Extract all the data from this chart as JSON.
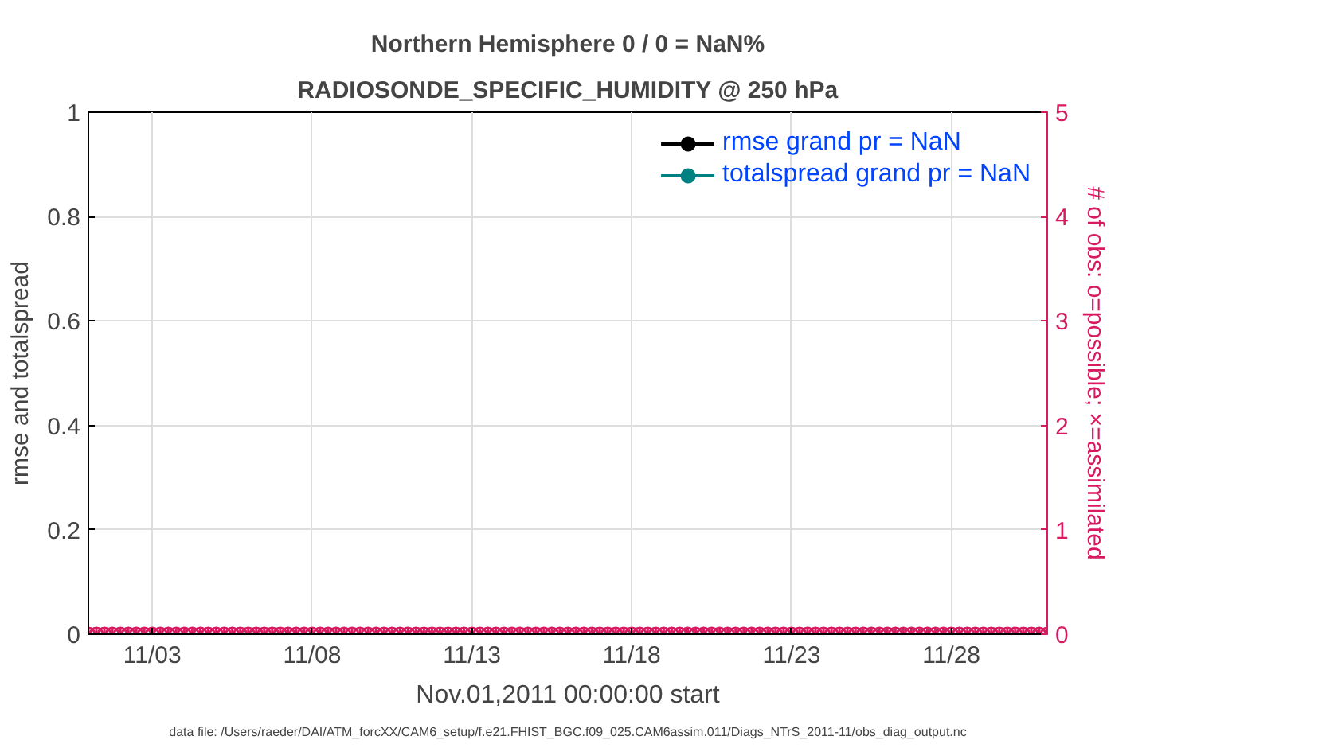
{
  "chart_data": {
    "type": "line",
    "title": "Northern Hemisphere 0 / 0 = NaN%",
    "subtitle": "RADIOSONDE_SPECIFIC_HUMIDITY @ 250 hPa",
    "xlabel": "Nov.01,2011 00:00:00 start",
    "ylabel": "rmse and totalspread",
    "y2label": "# of obs: o=possible; ×=assimilated",
    "annotations": [
      "data file: /Users/raeder/DAI/ATM_forcXX/CAM6_setup/f.e21.FHIST_BGC.f09_025.CAM6assim.011/Diags_NTrS_2011-11/obs_diag_output.nc"
    ],
    "x": [
      "2011-11-01T00:00",
      "2011-11-01T06:00",
      "2011-11-01T12:00",
      "2011-11-01T18:00",
      "2011-11-02T00:00",
      "2011-11-02T06:00",
      "2011-11-02T12:00",
      "2011-11-02T18:00",
      "2011-11-03T00:00",
      "2011-11-03T06:00",
      "2011-11-03T12:00",
      "2011-11-03T18:00",
      "2011-11-04T00:00",
      "2011-11-04T06:00",
      "2011-11-04T12:00",
      "2011-11-04T18:00",
      "2011-11-05T00:00",
      "2011-11-05T06:00",
      "2011-11-05T12:00",
      "2011-11-05T18:00",
      "2011-11-06T00:00",
      "2011-11-06T06:00",
      "2011-11-06T12:00",
      "2011-11-06T18:00",
      "2011-11-07T00:00",
      "2011-11-07T06:00",
      "2011-11-07T12:00",
      "2011-11-07T18:00",
      "2011-11-08T00:00",
      "2011-11-08T06:00",
      "2011-11-08T12:00",
      "2011-11-08T18:00",
      "2011-11-09T00:00",
      "2011-11-09T06:00",
      "2011-11-09T12:00",
      "2011-11-09T18:00",
      "2011-11-10T00:00",
      "2011-11-10T06:00",
      "2011-11-10T12:00",
      "2011-11-10T18:00",
      "2011-11-11T00:00",
      "2011-11-11T06:00",
      "2011-11-11T12:00",
      "2011-11-11T18:00",
      "2011-11-12T00:00",
      "2011-11-12T06:00",
      "2011-11-12T12:00",
      "2011-11-12T18:00",
      "2011-11-13T00:00",
      "2011-11-13T06:00",
      "2011-11-13T12:00",
      "2011-11-13T18:00",
      "2011-11-14T00:00",
      "2011-11-14T06:00",
      "2011-11-14T12:00",
      "2011-11-14T18:00",
      "2011-11-15T00:00",
      "2011-11-15T06:00",
      "2011-11-15T12:00",
      "2011-11-15T18:00",
      "2011-11-16T00:00",
      "2011-11-16T06:00",
      "2011-11-16T12:00",
      "2011-11-16T18:00",
      "2011-11-17T00:00",
      "2011-11-17T06:00",
      "2011-11-17T12:00",
      "2011-11-17T18:00",
      "2011-11-18T00:00",
      "2011-11-18T06:00",
      "2011-11-18T12:00",
      "2011-11-18T18:00",
      "2011-11-19T00:00",
      "2011-11-19T06:00",
      "2011-11-19T12:00",
      "2011-11-19T18:00",
      "2011-11-20T00:00",
      "2011-11-20T06:00",
      "2011-11-20T12:00",
      "2011-11-20T18:00",
      "2011-11-21T00:00",
      "2011-11-21T06:00",
      "2011-11-21T12:00",
      "2011-11-21T18:00",
      "2011-11-22T00:00",
      "2011-11-22T06:00",
      "2011-11-22T12:00",
      "2011-11-22T18:00",
      "2011-11-23T00:00",
      "2011-11-23T06:00",
      "2011-11-23T12:00",
      "2011-11-23T18:00",
      "2011-11-24T00:00",
      "2011-11-24T06:00",
      "2011-11-24T12:00",
      "2011-11-24T18:00",
      "2011-11-25T00:00",
      "2011-11-25T06:00",
      "2011-11-25T12:00",
      "2011-11-25T18:00",
      "2011-11-26T00:00",
      "2011-11-26T06:00",
      "2011-11-26T12:00",
      "2011-11-26T18:00",
      "2011-11-27T00:00",
      "2011-11-27T06:00",
      "2011-11-27T12:00",
      "2011-11-27T18:00",
      "2011-11-28T00:00",
      "2011-11-28T06:00",
      "2011-11-28T12:00",
      "2011-11-28T18:00",
      "2011-11-29T00:00",
      "2011-11-29T06:00",
      "2011-11-29T12:00",
      "2011-11-29T18:00",
      "2011-11-30T00:00",
      "2011-11-30T06:00",
      "2011-11-30T12:00",
      "2011-11-30T18:00",
      "2011-12-01T00:00"
    ],
    "series": [
      {
        "name": "rmse grand pr = NaN",
        "color": "#000000",
        "marker": "circle",
        "values": [
          null,
          null,
          null,
          null,
          null,
          null,
          null,
          null,
          null,
          null,
          null,
          null,
          null,
          null,
          null,
          null,
          null,
          null,
          null,
          null,
          null,
          null,
          null,
          null,
          null,
          null,
          null,
          null,
          null,
          null,
          null,
          null,
          null,
          null,
          null,
          null,
          null,
          null,
          null,
          null,
          null,
          null,
          null,
          null,
          null,
          null,
          null,
          null,
          null,
          null,
          null,
          null,
          null,
          null,
          null,
          null,
          null,
          null,
          null,
          null,
          null,
          null,
          null,
          null,
          null,
          null,
          null,
          null,
          null,
          null,
          null,
          null,
          null,
          null,
          null,
          null,
          null,
          null,
          null,
          null,
          null,
          null,
          null,
          null,
          null,
          null,
          null,
          null,
          null,
          null,
          null,
          null,
          null,
          null,
          null,
          null,
          null,
          null,
          null,
          null,
          null,
          null,
          null,
          null,
          null,
          null,
          null,
          null,
          null,
          null,
          null,
          null,
          null,
          null,
          null,
          null,
          null,
          null,
          null,
          null,
          null
        ]
      },
      {
        "name": "totalspread grand pr = NaN",
        "color": "#008080",
        "marker": "circle",
        "values": [
          null,
          null,
          null,
          null,
          null,
          null,
          null,
          null,
          null,
          null,
          null,
          null,
          null,
          null,
          null,
          null,
          null,
          null,
          null,
          null,
          null,
          null,
          null,
          null,
          null,
          null,
          null,
          null,
          null,
          null,
          null,
          null,
          null,
          null,
          null,
          null,
          null,
          null,
          null,
          null,
          null,
          null,
          null,
          null,
          null,
          null,
          null,
          null,
          null,
          null,
          null,
          null,
          null,
          null,
          null,
          null,
          null,
          null,
          null,
          null,
          null,
          null,
          null,
          null,
          null,
          null,
          null,
          null,
          null,
          null,
          null,
          null,
          null,
          null,
          null,
          null,
          null,
          null,
          null,
          null,
          null,
          null,
          null,
          null,
          null,
          null,
          null,
          null,
          null,
          null,
          null,
          null,
          null,
          null,
          null,
          null,
          null,
          null,
          null,
          null,
          null,
          null,
          null,
          null,
          null,
          null,
          null,
          null,
          null,
          null,
          null,
          null,
          null,
          null,
          null,
          null,
          null,
          null,
          null,
          null,
          null
        ]
      },
      {
        "type": "scatter",
        "axis": "y2",
        "color": "#d81b60",
        "marker": "circle",
        "values": [
          0,
          0,
          0,
          0,
          0,
          0,
          0,
          0,
          0,
          0,
          0,
          0,
          0,
          0,
          0,
          0,
          0,
          0,
          0,
          0,
          0,
          0,
          0,
          0,
          0,
          0,
          0,
          0,
          0,
          0,
          0,
          0,
          0,
          0,
          0,
          0,
          0,
          0,
          0,
          0,
          0,
          0,
          0,
          0,
          0,
          0,
          0,
          0,
          0,
          0,
          0,
          0,
          0,
          0,
          0,
          0,
          0,
          0,
          0,
          0,
          0,
          0,
          0,
          0,
          0,
          0,
          0,
          0,
          0,
          0,
          0,
          0,
          0,
          0,
          0,
          0,
          0,
          0,
          0,
          0,
          0,
          0,
          0,
          0,
          0,
          0,
          0,
          0,
          0,
          0,
          0,
          0,
          0,
          0,
          0,
          0,
          0,
          0,
          0,
          0,
          0,
          0,
          0,
          0,
          0,
          0,
          0,
          0,
          0,
          0,
          0,
          0,
          0,
          0,
          0,
          0,
          0,
          0,
          0,
          0,
          0
        ]
      },
      {
        "type": "scatter",
        "axis": "y2",
        "color": "#d81b60",
        "marker": "cross",
        "values": [
          0,
          0,
          0,
          0,
          0,
          0,
          0,
          0,
          0,
          0,
          0,
          0,
          0,
          0,
          0,
          0,
          0,
          0,
          0,
          0,
          0,
          0,
          0,
          0,
          0,
          0,
          0,
          0,
          0,
          0,
          0,
          0,
          0,
          0,
          0,
          0,
          0,
          0,
          0,
          0,
          0,
          0,
          0,
          0,
          0,
          0,
          0,
          0,
          0,
          0,
          0,
          0,
          0,
          0,
          0,
          0,
          0,
          0,
          0,
          0,
          0,
          0,
          0,
          0,
          0,
          0,
          0,
          0,
          0,
          0,
          0,
          0,
          0,
          0,
          0,
          0,
          0,
          0,
          0,
          0,
          0,
          0,
          0,
          0,
          0,
          0,
          0,
          0,
          0,
          0,
          0,
          0,
          0,
          0,
          0,
          0,
          0,
          0,
          0,
          0,
          0,
          0,
          0,
          0,
          0,
          0,
          0,
          0,
          0,
          0,
          0,
          0,
          0,
          0,
          0,
          0,
          0,
          0,
          0,
          0,
          0
        ]
      }
    ],
    "xlim": [
      "2011-11-01T00:00",
      "2011-12-01T00:00"
    ],
    "xticks": [
      {
        "value": "2011-11-03",
        "label": "11/03"
      },
      {
        "value": "2011-11-08",
        "label": "11/08"
      },
      {
        "value": "2011-11-13",
        "label": "11/13"
      },
      {
        "value": "2011-11-18",
        "label": "11/18"
      },
      {
        "value": "2011-11-23",
        "label": "11/23"
      },
      {
        "value": "2011-11-28",
        "label": "11/28"
      }
    ],
    "ylim": [
      0,
      1
    ],
    "yticks": [
      0,
      0.2,
      0.4,
      0.6,
      0.8,
      1
    ],
    "y2lim": [
      0,
      5
    ],
    "y2ticks": [
      0,
      1,
      2,
      3,
      4,
      5
    ],
    "grid": true,
    "legend": "top right",
    "line_style": "solid"
  }
}
